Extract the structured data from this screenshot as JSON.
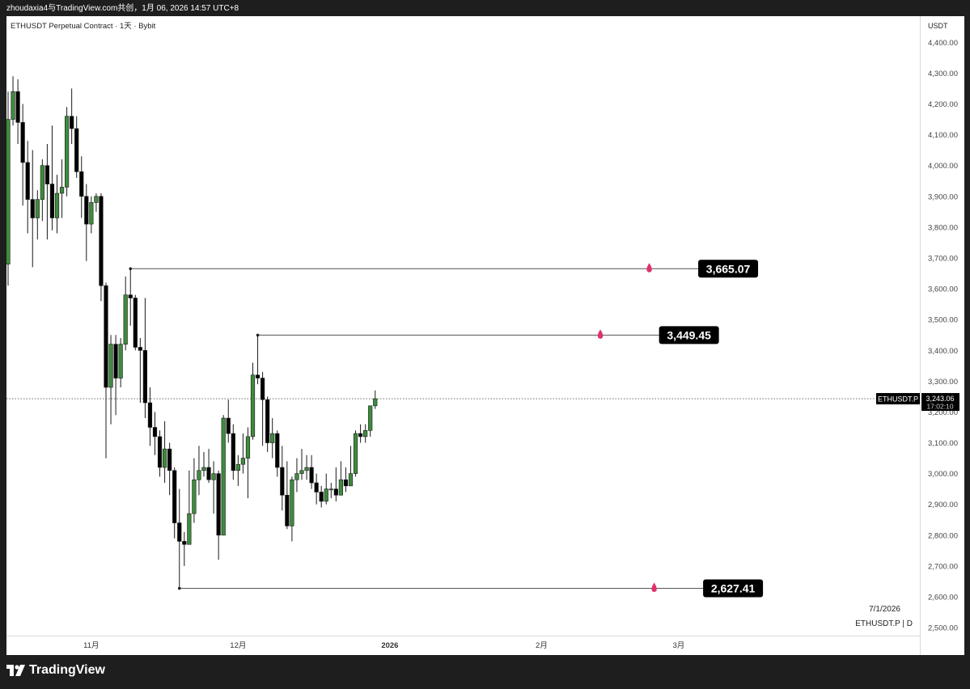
{
  "top_bar": {
    "text": "zhoudaxia4与TradingView.com共创，1月 06, 2026 14:57 UTC+8"
  },
  "chart_header": {
    "symbol_line": "ETHUSDT Perpetual Contract · 1天 · Bybit"
  },
  "brand": {
    "label": "TradingView",
    "icon": "tradingview-logo-icon"
  },
  "colors": {
    "up": "#3e8b3e",
    "down": "#000000",
    "level_marker": "#e0316a",
    "badge_bg": "#000000"
  },
  "chart_data": {
    "type": "candlestick",
    "y_unit": "USDT",
    "ylim": [
      2470,
      4460
    ],
    "y_ticks": [
      2500,
      2600,
      2700,
      2800,
      2900,
      3000,
      3100,
      3200,
      3300,
      3400,
      3500,
      3600,
      3700,
      3800,
      3900,
      4000,
      4100,
      4200,
      4300,
      4400
    ],
    "y_tick_labels": [
      "2,500.00",
      "2,600.00",
      "2,700.00",
      "2,800.00",
      "2,900.00",
      "3,000.00",
      "3,100.00",
      "3,200.00",
      "3,300.00",
      "3,400.00",
      "3,500.00",
      "3,600.00",
      "3,700.00",
      "3,800.00",
      "3,900.00",
      "4,000.00",
      "4,100.00",
      "4,200.00",
      "4,300.00",
      "4,400.00"
    ],
    "x_ticks": [
      {
        "label": "11月",
        "date": "2025-11-01",
        "bold": false
      },
      {
        "label": "12月",
        "date": "2025-12-01",
        "bold": false
      },
      {
        "label": "2026",
        "date": "2026-01-01",
        "bold": true
      },
      {
        "label": "2月",
        "date": "2026-02-01",
        "bold": false
      },
      {
        "label": "3月",
        "date": "2026-03-01",
        "bold": false
      }
    ],
    "start_date": "2025-10-15",
    "candles": [
      [
        3680,
        4150,
        3610,
        4240
      ],
      [
        4150,
        4240,
        4130,
        4290
      ],
      [
        4240,
        4140,
        4070,
        4280
      ],
      [
        4140,
        4010,
        3870,
        4200
      ],
      [
        4010,
        3890,
        3780,
        4080
      ],
      [
        3890,
        3830,
        3670,
        4050
      ],
      [
        3830,
        3890,
        3760,
        3920
      ],
      [
        3890,
        4000,
        3820,
        4020
      ],
      [
        4000,
        3940,
        3760,
        4070
      ],
      [
        3940,
        3830,
        3790,
        4130
      ],
      [
        3830,
        3910,
        3780,
        3970
      ],
      [
        3910,
        3930,
        3830,
        4020
      ],
      [
        3930,
        4160,
        3900,
        4190
      ],
      [
        4160,
        4120,
        4070,
        4250
      ],
      [
        4120,
        3980,
        3960,
        4160
      ],
      [
        3980,
        3900,
        3830,
        4030
      ],
      [
        3900,
        3810,
        3690,
        3940
      ],
      [
        3810,
        3880,
        3780,
        3900
      ],
      [
        3880,
        3900,
        3850,
        3910
      ],
      [
        3900,
        3610,
        3560,
        3910
      ],
      [
        3610,
        3280,
        3050,
        3620
      ],
      [
        3280,
        3420,
        3160,
        3450
      ],
      [
        3420,
        3310,
        3190,
        3450
      ],
      [
        3310,
        3420,
        3280,
        3440
      ],
      [
        3420,
        3580,
        3400,
        3640
      ],
      [
        3580,
        3570,
        3480,
        3670
      ],
      [
        3570,
        3410,
        3400,
        3580
      ],
      [
        3410,
        3400,
        3230,
        3440
      ],
      [
        3400,
        3230,
        3180,
        3570
      ],
      [
        3230,
        3150,
        3090,
        3280
      ],
      [
        3150,
        3120,
        3060,
        3200
      ],
      [
        3120,
        3020,
        2990,
        3140
      ],
      [
        3020,
        3080,
        2970,
        3170
      ],
      [
        3080,
        3010,
        2930,
        3100
      ],
      [
        3010,
        2840,
        2790,
        3020
      ],
      [
        2840,
        2780,
        2630,
        2950
      ],
      [
        2780,
        2770,
        2700,
        2810
      ],
      [
        2770,
        2870,
        2780,
        3010
      ],
      [
        2870,
        2980,
        2840,
        3050
      ],
      [
        2980,
        3010,
        2930,
        3090
      ],
      [
        3010,
        3020,
        2990,
        3070
      ],
      [
        3020,
        2980,
        2970,
        3080
      ],
      [
        2980,
        3000,
        2870,
        3040
      ],
      [
        3000,
        2800,
        2720,
        3010
      ],
      [
        2800,
        3180,
        2800,
        3190
      ],
      [
        3180,
        3130,
        3100,
        3240
      ],
      [
        3130,
        3010,
        2980,
        3160
      ],
      [
        3010,
        3030,
        2960,
        3060
      ],
      [
        3030,
        3050,
        3000,
        3130
      ],
      [
        3050,
        3120,
        2920,
        3150
      ],
      [
        3120,
        3320,
        3110,
        3360
      ],
      [
        3320,
        3310,
        3290,
        3450
      ],
      [
        3310,
        3240,
        3090,
        3330
      ],
      [
        3240,
        3100,
        3070,
        3250
      ],
      [
        3100,
        3130,
        3050,
        3180
      ],
      [
        3130,
        3020,
        2990,
        3140
      ],
      [
        3020,
        2930,
        2880,
        3090
      ],
      [
        2930,
        2830,
        2820,
        3040
      ],
      [
        2830,
        2980,
        2780,
        2990
      ],
      [
        2980,
        3000,
        2940,
        3050
      ],
      [
        3000,
        3010,
        2980,
        3080
      ],
      [
        3010,
        3020,
        2980,
        3060
      ],
      [
        3020,
        2970,
        2950,
        3060
      ],
      [
        2970,
        2940,
        2900,
        3000
      ],
      [
        2940,
        2910,
        2890,
        2960
      ],
      [
        2910,
        2950,
        2900,
        3000
      ],
      [
        2950,
        2950,
        2920,
        2970
      ],
      [
        2950,
        2930,
        2910,
        3020
      ],
      [
        2930,
        2980,
        2930,
        3040
      ],
      [
        2980,
        2960,
        2940,
        3020
      ],
      [
        2960,
        3000,
        2960,
        3090
      ],
      [
        3000,
        3130,
        2990,
        3140
      ],
      [
        3130,
        3120,
        3100,
        3160
      ],
      [
        3120,
        3140,
        3100,
        3160
      ],
      [
        3140,
        3220,
        3120,
        3220
      ],
      [
        3220,
        3243,
        3210,
        3270
      ]
    ],
    "levels": [
      {
        "label": "3,665.07",
        "value": 3665.07,
        "start_index": 25,
        "marker_date": "2026-02-23",
        "badge_date": "2026-03-05"
      },
      {
        "label": "3,449.45",
        "value": 3449.45,
        "start_index": 51,
        "marker_date": "2026-02-13",
        "badge_date": "2026-02-25"
      },
      {
        "label": "2,627.41",
        "value": 2627.41,
        "start_index": 35,
        "marker_date": "2026-02-24",
        "badge_date": "2026-03-06"
      }
    ],
    "current_price": {
      "symbol": "ETHUSDT.P",
      "price": "3,243.06",
      "countdown": "17:02:10",
      "value": 3243.06
    },
    "footer_date": "7/1/2026",
    "footer_symbol": "ETHUSDT.P | D"
  }
}
